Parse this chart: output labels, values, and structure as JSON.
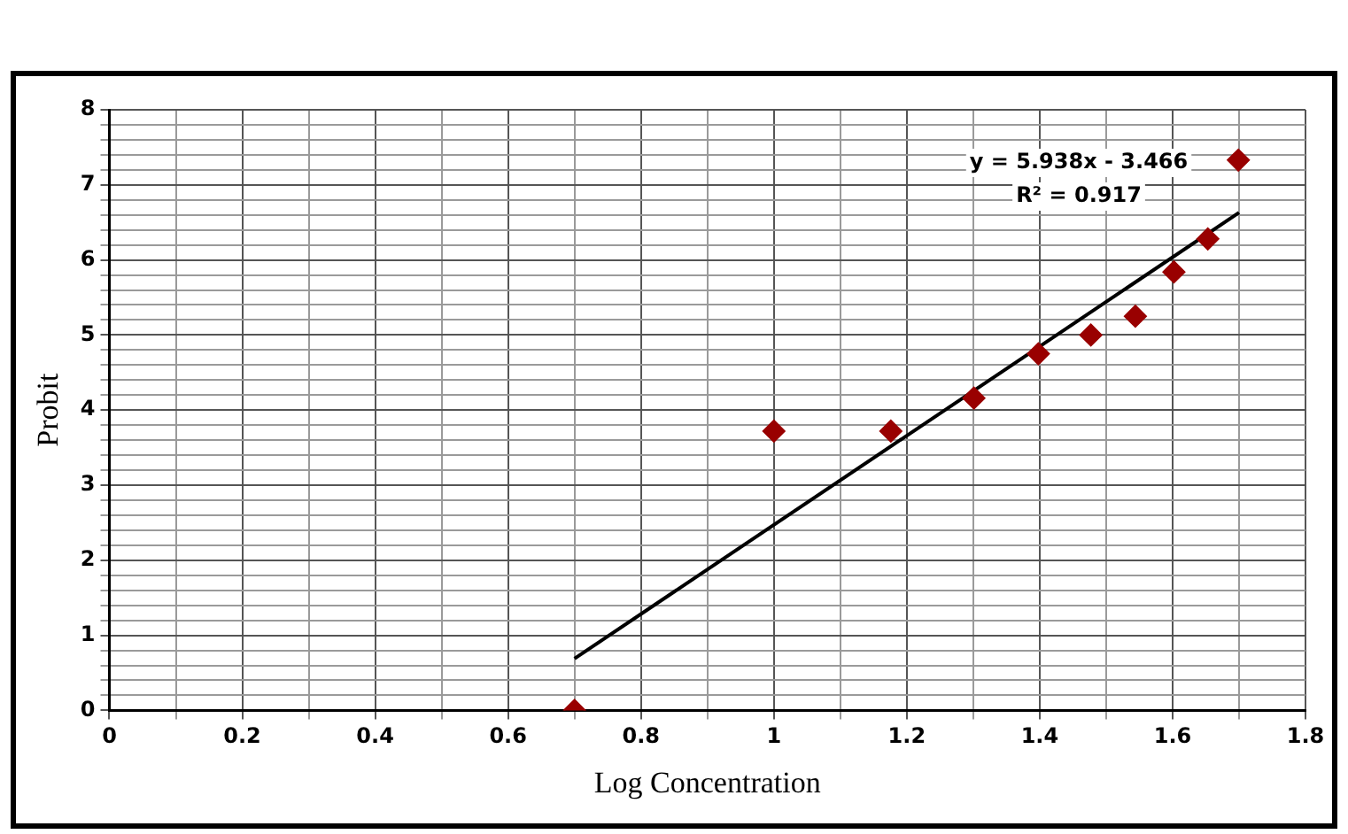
{
  "chart_data": {
    "type": "scatter",
    "xlabel": "Log Concentration",
    "ylabel": "Probit",
    "x": [
      0.7,
      1.0,
      1.176,
      1.301,
      1.398,
      1.477,
      1.544,
      1.602,
      1.653,
      1.699
    ],
    "series": [
      {
        "color": "#990000",
        "marker": "diamond",
        "values": [
          0,
          3.72,
          3.72,
          4.16,
          4.75,
          5.0,
          5.25,
          5.84,
          6.28,
          7.33
        ]
      },
      {
        "type": "line",
        "color": "#000000",
        "marker": "none",
        "x": [
          0.7,
          1.7
        ],
        "values": [
          0.69,
          6.63
        ]
      }
    ],
    "xlim": [
      0,
      1.8
    ],
    "ylim": [
      0,
      8
    ],
    "xticks": [
      0,
      {
        "value": 0.1,
        "label": null
      },
      0.2,
      {
        "value": 0.3,
        "label": null
      },
      0.4,
      {
        "value": 0.5,
        "label": null
      },
      0.6,
      {
        "value": 0.7,
        "label": null
      },
      0.8,
      {
        "value": 0.9,
        "label": null
      },
      1,
      {
        "value": 1.1,
        "label": null
      },
      1.2,
      {
        "value": 1.3,
        "label": null
      },
      1.4,
      {
        "value": 1.5,
        "label": null
      },
      1.6,
      {
        "value": 1.7,
        "label": null
      },
      1.8
    ],
    "yticks": [
      0,
      {
        "value": 0.2,
        "label": null
      },
      {
        "value": 0.4,
        "label": null
      },
      {
        "value": 0.6,
        "label": null
      },
      {
        "value": 0.8,
        "label": null
      },
      1,
      {
        "value": 1.2,
        "label": null
      },
      {
        "value": 1.4,
        "label": null
      },
      {
        "value": 1.6,
        "label": null
      },
      {
        "value": 1.8,
        "label": null
      },
      2,
      {
        "value": 2.2,
        "label": null
      },
      {
        "value": 2.4,
        "label": null
      },
      {
        "value": 2.6,
        "label": null
      },
      {
        "value": 2.8,
        "label": null
      },
      3,
      {
        "value": 3.2,
        "label": null
      },
      {
        "value": 3.4,
        "label": null
      },
      {
        "value": 3.6,
        "label": null
      },
      {
        "value": 3.8,
        "label": null
      },
      4,
      {
        "value": 4.2,
        "label": null
      },
      {
        "value": 4.4,
        "label": null
      },
      {
        "value": 4.6,
        "label": null
      },
      {
        "value": 4.8,
        "label": null
      },
      5,
      {
        "value": 5.2,
        "label": null
      },
      {
        "value": 5.4,
        "label": null
      },
      {
        "value": 5.6,
        "label": null
      },
      {
        "value": 5.8,
        "label": null
      },
      6,
      {
        "value": 6.2,
        "label": null
      },
      {
        "value": 6.4,
        "label": null
      },
      {
        "value": 6.6,
        "label": null
      },
      {
        "value": 6.8,
        "label": null
      },
      7,
      {
        "value": 7.2,
        "label": null
      },
      {
        "value": 7.4,
        "label": null
      },
      {
        "value": 7.6,
        "label": null
      },
      {
        "value": 7.8,
        "label": null
      },
      8
    ],
    "grid": true,
    "legend": false,
    "annotations": [
      "y = 5.938x - 3.466",
      "R² = 0.917"
    ]
  }
}
